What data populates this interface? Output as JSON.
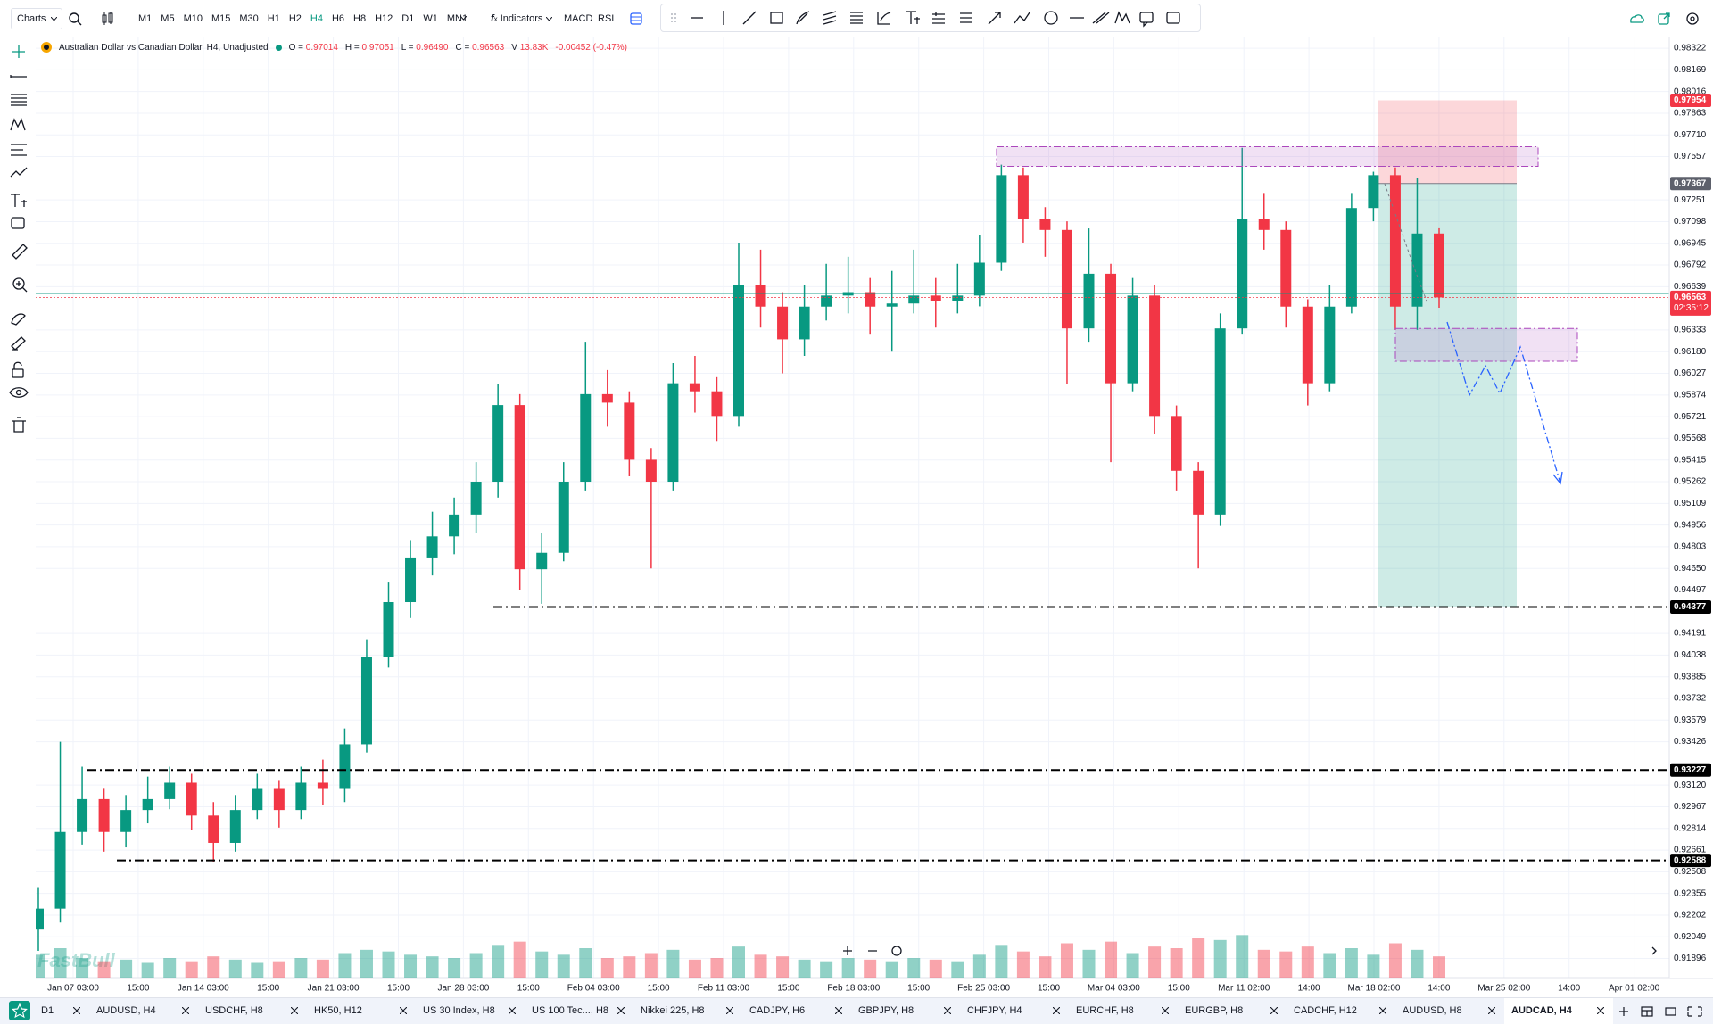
{
  "toolbar": {
    "menu": "Charts",
    "timeframes": [
      "M1",
      "M5",
      "M10",
      "M15",
      "M30",
      "H1",
      "H2",
      "H4",
      "H6",
      "H8",
      "H12",
      "D1",
      "W1",
      "MN1"
    ],
    "active_timeframe": 7,
    "indicators": "Indicators",
    "studies": [
      "MACD",
      "RSI"
    ]
  },
  "legend": {
    "symbol": "Australian Dollar vs Canadian Dollar, H4, Unadjusted",
    "fields": [
      {
        "label": "O =",
        "value": "0.97014"
      },
      {
        "label": "H =",
        "value": "0.97051"
      },
      {
        "label": "L =",
        "value": "0.96490"
      },
      {
        "label": "C =",
        "value": "0.96563"
      },
      {
        "label": "V",
        "value": "13.83K"
      }
    ],
    "change": "-0.00452 (-0.47%)"
  },
  "chart": {
    "type": "candlestick",
    "ylim": [
      0.91761,
      0.98398
    ],
    "yticks": [
      0.98322,
      0.98169,
      0.98016,
      0.97863,
      {
        "value": 0.9771,
        "label": "0.97710"
      },
      0.97557,
      0.97251,
      0.97098,
      0.96945,
      0.96792,
      0.96639,
      0.96333,
      {
        "value": 0.9618,
        "label": "0.96180"
      },
      0.96027,
      0.95874,
      0.95721,
      0.95568,
      0.95415,
      0.95262,
      0.95109,
      0.94956,
      0.94803,
      {
        "value": 0.9465,
        "label": "0.94650"
      },
      0.94497,
      0.94191,
      0.94038,
      0.93885,
      0.93732,
      0.93579,
      0.93426,
      {
        "value": 0.9312,
        "label": "0.93120"
      },
      0.92967,
      0.92814,
      0.92661,
      0.92508,
      0.92355,
      0.92202,
      0.92049,
      0.91896
    ],
    "x_labels": [
      "Jan 07 03:00",
      "15:00",
      "Jan 14 03:00",
      "15:00",
      "Jan 21 03:00",
      "15:00",
      "Jan 28 03:00",
      "15:00",
      "Feb 04 03:00",
      "15:00",
      "Feb 11 03:00",
      "15:00",
      "Feb 18 03:00",
      "15:00",
      "Feb 25 03:00",
      "15:00",
      "Mar 04 03:00",
      "15:00",
      "Mar 11 02:00",
      "14:00",
      "Mar 18 02:00",
      "14:00",
      "Mar 25 02:00",
      "14:00",
      "Apr 01 02:00"
    ],
    "candles": [
      [
        0.921,
        0.924,
        0.9195,
        0.92248
      ],
      [
        0.92248,
        0.93426,
        0.9215,
        0.92789
      ],
      [
        0.92789,
        0.9325,
        0.927,
        0.93021
      ],
      [
        0.93021,
        0.931,
        0.9265,
        0.92789
      ],
      [
        0.92789,
        0.9305,
        0.9268,
        0.92944
      ],
      [
        0.92944,
        0.9318,
        0.9285,
        0.93021
      ],
      [
        0.93021,
        0.9325,
        0.9295,
        0.93137
      ],
      [
        0.93137,
        0.932,
        0.928,
        0.92905
      ],
      [
        0.92905,
        0.93,
        0.9258,
        0.92712
      ],
      [
        0.92712,
        0.9305,
        0.9265,
        0.92944
      ],
      [
        0.92944,
        0.932,
        0.9288,
        0.93099
      ],
      [
        0.93099,
        0.9315,
        0.9282,
        0.92944
      ],
      [
        0.92944,
        0.9325,
        0.9288,
        0.93137
      ],
      [
        0.93137,
        0.933,
        0.9298,
        0.93099
      ],
      [
        0.93099,
        0.9352,
        0.93,
        0.93408
      ],
      [
        0.93408,
        0.9415,
        0.9335,
        0.94026
      ],
      [
        0.94026,
        0.9455,
        0.9395,
        0.94412
      ],
      [
        0.94412,
        0.9485,
        0.943,
        0.94721
      ],
      [
        0.94721,
        0.9505,
        0.946,
        0.94876
      ],
      [
        0.94876,
        0.9515,
        0.9475,
        0.9503
      ],
      [
        0.9503,
        0.954,
        0.949,
        0.95262
      ],
      [
        0.95262,
        0.9595,
        0.9515,
        0.95803
      ],
      [
        0.95803,
        0.9588,
        0.945,
        0.94644
      ],
      [
        0.94644,
        0.949,
        0.944,
        0.9476
      ],
      [
        0.9476,
        0.954,
        0.947,
        0.95262
      ],
      [
        0.95262,
        0.9625,
        0.952,
        0.9588
      ],
      [
        0.9588,
        0.9605,
        0.9565,
        0.9582
      ],
      [
        0.9582,
        0.959,
        0.953,
        0.95417
      ],
      [
        0.95417,
        0.955,
        0.9465,
        0.95262
      ],
      [
        0.95262,
        0.961,
        0.952,
        0.95957
      ],
      [
        0.95957,
        0.9615,
        0.9575,
        0.959
      ],
      [
        0.959,
        0.96,
        0.9555,
        0.95726
      ],
      [
        0.95726,
        0.9695,
        0.9565,
        0.96653
      ],
      [
        0.96653,
        0.969,
        0.9635,
        0.96498
      ],
      [
        0.96498,
        0.966,
        0.96027,
        0.96267
      ],
      [
        0.96267,
        0.9665,
        0.9615,
        0.96498
      ],
      [
        0.96498,
        0.968,
        0.964,
        0.96576
      ],
      [
        0.96576,
        0.9685,
        0.9645,
        0.966
      ],
      [
        0.966,
        0.967,
        0.963,
        0.96498
      ],
      [
        0.96498,
        0.9675,
        0.9618,
        0.9652
      ],
      [
        0.9652,
        0.969,
        0.9645,
        0.96576
      ],
      [
        0.96576,
        0.967,
        0.9635,
        0.96537
      ],
      [
        0.96537,
        0.968,
        0.9645,
        0.96576
      ],
      [
        0.96576,
        0.97,
        0.965,
        0.96808
      ],
      [
        0.96808,
        0.975,
        0.9675,
        0.97426
      ],
      [
        0.97426,
        0.9748,
        0.9695,
        0.97117
      ],
      [
        0.97117,
        0.972,
        0.9685,
        0.97039
      ],
      [
        0.97039,
        0.971,
        0.9595,
        0.96344
      ],
      [
        0.96344,
        0.9705,
        0.9625,
        0.9673
      ],
      [
        0.9673,
        0.968,
        0.954,
        0.95957
      ],
      [
        0.95957,
        0.967,
        0.959,
        0.96576
      ],
      [
        0.96576,
        0.9665,
        0.956,
        0.95726
      ],
      [
        0.95726,
        0.958,
        0.952,
        0.95339
      ],
      [
        0.95339,
        0.954,
        0.9465,
        0.9503
      ],
      [
        0.9503,
        0.9645,
        0.9495,
        0.96344
      ],
      [
        0.96344,
        0.97619,
        0.963,
        0.97117
      ],
      [
        0.97117,
        0.973,
        0.969,
        0.97039
      ],
      [
        0.97039,
        0.971,
        0.9635,
        0.96498
      ],
      [
        0.96498,
        0.9655,
        0.958,
        0.95957
      ],
      [
        0.95957,
        0.9665,
        0.959,
        0.96498
      ],
      [
        0.96498,
        0.973,
        0.9645,
        0.97194
      ],
      [
        0.97194,
        0.9745,
        0.971,
        0.97426
      ],
      [
        0.97426,
        0.9748,
        0.96333,
        0.96498
      ],
      [
        0.96498,
        0.97404,
        0.96333,
        0.97014
      ],
      [
        0.97014,
        0.97051,
        0.9649,
        0.96563
      ]
    ],
    "volume": {
      "ylim": [
        0,
        60
      ],
      "values": [
        14,
        18,
        12,
        10,
        11,
        9,
        12,
        10,
        13,
        11,
        9,
        10,
        12,
        11,
        15,
        17,
        16,
        14,
        13,
        12,
        15,
        20,
        22,
        16,
        14,
        18,
        12,
        13,
        15,
        17,
        11,
        12,
        19,
        14,
        13,
        11,
        10,
        12,
        11,
        10,
        12,
        11,
        10,
        14,
        20,
        16,
        13,
        21,
        17,
        22,
        15,
        19,
        18,
        24,
        23,
        26,
        17,
        16,
        19,
        15,
        18,
        14,
        21,
        17,
        13
      ]
    },
    "up_color": "#089981",
    "down_color": "#f23645",
    "grid": true,
    "current_price": {
      "value": 0.96563,
      "countdown": "02:35:12"
    },
    "levels": [
      0.94377,
      0.93227,
      0.92588
    ],
    "position": {
      "stop": 0.97954,
      "entry": 0.97367,
      "target": 0.94377
    },
    "zones": [
      {
        "top": 0.97627,
        "bottom": 0.97488
      },
      {
        "top": 0.96344,
        "bottom": 0.96112
      }
    ],
    "watermark": "FastBull"
  },
  "tabs": [
    "D1",
    "AUDUSD, H4",
    "USDCHF, H8",
    "HK50, H12",
    "US 30 Index, H8",
    "US 100 Tec..., H8",
    "Nikkei 225, H8",
    "CADJPY, H6",
    "GBPJPY, H8",
    "CHFJPY, H4",
    "EURCHF, H8",
    "EURGBP, H8",
    "CADCHF, H12",
    "AUDUSD, H8",
    "AUDCAD, H4"
  ],
  "active_tab": 14
}
